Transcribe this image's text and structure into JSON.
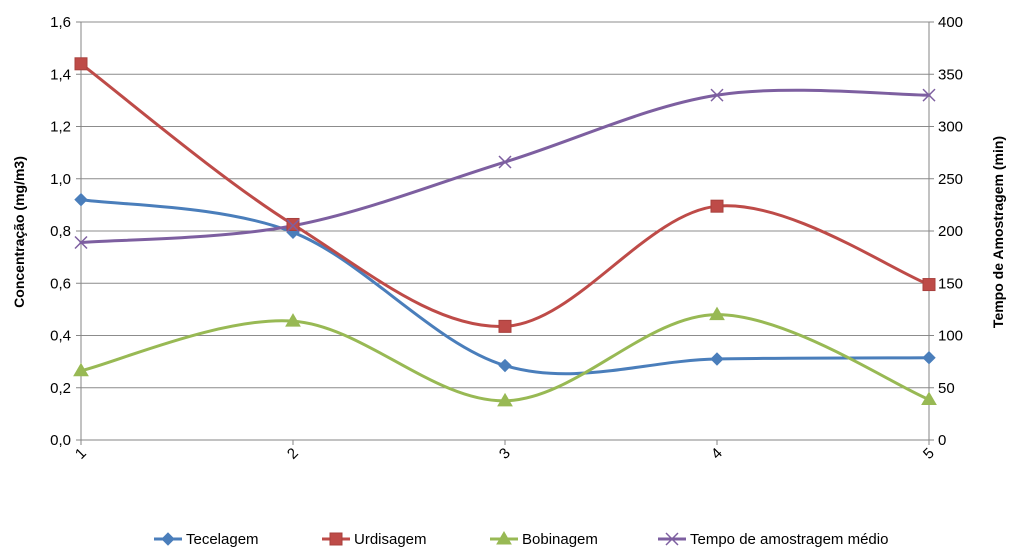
{
  "chart_data": {
    "type": "line",
    "title": "",
    "categories": [
      "1",
      "2",
      "3",
      "4",
      "5"
    ],
    "y_left": {
      "label": "Concentração (mg/m3)",
      "ylim": [
        0,
        1.6
      ],
      "ticks": [
        "0,0",
        "0,2",
        "0,4",
        "0,6",
        "0,8",
        "1,0",
        "1,2",
        "1,4",
        "1,6"
      ]
    },
    "y_right": {
      "label": "Tempo de Amostragem (min)",
      "ylim": [
        0,
        400
      ],
      "ticks": [
        "0",
        "50",
        "100",
        "150",
        "200",
        "250",
        "300",
        "350",
        "400"
      ]
    },
    "grid": true,
    "legend_position": "bottom",
    "series": [
      {
        "name": "Tecelagem",
        "axis": "left",
        "color": "#4A7EBB",
        "marker": "diamond",
        "values": [
          0.92,
          0.795,
          0.285,
          0.31,
          0.315
        ]
      },
      {
        "name": "Urdisagem",
        "axis": "left",
        "color": "#BE4B48",
        "marker": "square",
        "values": [
          1.44,
          0.825,
          0.435,
          0.895,
          0.595
        ]
      },
      {
        "name": "Bobinagem",
        "axis": "left",
        "color": "#98B954",
        "marker": "triangle",
        "values": [
          0.265,
          0.455,
          0.15,
          0.48,
          0.155
        ]
      },
      {
        "name": "Tempo de amostragem médio",
        "axis": "right",
        "color": "#7D5FA0",
        "marker": "x",
        "values": [
          189,
          205,
          266,
          330,
          330
        ]
      }
    ]
  }
}
